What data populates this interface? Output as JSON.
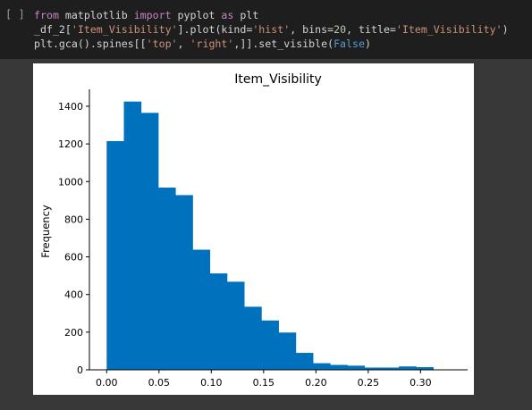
{
  "cell": {
    "run_indicator": "[ ]",
    "code_lines": [
      [
        [
          "kw",
          "from"
        ],
        [
          "p",
          " matplotlib "
        ],
        [
          "kw",
          "import"
        ],
        [
          "p",
          " pyplot "
        ],
        [
          "kw",
          "as"
        ],
        [
          "p",
          " plt"
        ]
      ],
      [
        [
          "p",
          "_df_2["
        ],
        [
          "str",
          "'Item_Visibility'"
        ],
        [
          "p",
          "].plot(kind="
        ],
        [
          "str",
          "'hist'"
        ],
        [
          "p",
          ", bins="
        ],
        [
          "num",
          "20"
        ],
        [
          "p",
          ", title="
        ],
        [
          "str",
          "'Item_Visibility'"
        ],
        [
          "p",
          ")"
        ]
      ],
      [
        [
          "p",
          "plt.gca().spines[["
        ],
        [
          "str",
          "'top'"
        ],
        [
          "p",
          ", "
        ],
        [
          "str",
          "'right'"
        ],
        [
          "p",
          ",]].set_visible("
        ],
        [
          "const",
          "False"
        ],
        [
          "p",
          ")"
        ]
      ]
    ]
  },
  "colors": {
    "bar": "#0072bd",
    "code_bg": "#1e1e1e",
    "output_bg": "#383838"
  },
  "chart_data": {
    "type": "bar",
    "title": "Item_Visibility",
    "xlabel": "",
    "ylabel": "Frequency",
    "bins": {
      "start": 0.0,
      "width": 0.01643,
      "counts": [
        1215,
        1425,
        1365,
        968,
        928,
        638,
        512,
        468,
        335,
        262,
        198,
        90,
        35,
        26,
        22,
        12,
        12,
        18,
        14,
        0
      ]
    },
    "xlim": [
      -0.0165,
      0.345
    ],
    "ylim": [
      0,
      1490
    ],
    "xticks": [
      "0.00",
      "0.05",
      "0.10",
      "0.15",
      "0.20",
      "0.25",
      "0.30"
    ],
    "xtick_values": [
      0.0,
      0.05,
      0.1,
      0.15,
      0.2,
      0.25,
      0.3
    ],
    "yticks": [
      "0",
      "200",
      "400",
      "600",
      "800",
      "1000",
      "1200",
      "1400"
    ],
    "ytick_values": [
      0,
      200,
      400,
      600,
      800,
      1000,
      1200,
      1400
    ],
    "grid": false,
    "legend": "none"
  }
}
